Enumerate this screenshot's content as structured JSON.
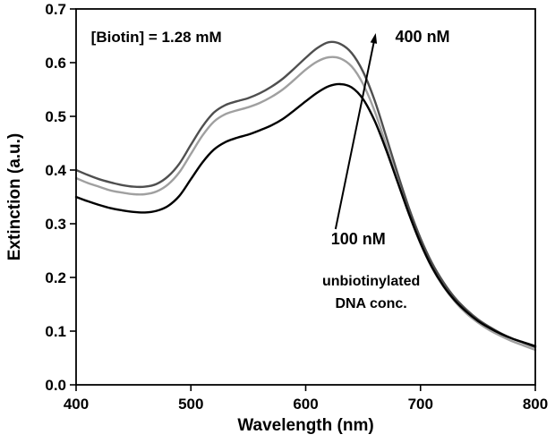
{
  "chart_data": {
    "type": "line",
    "title": "",
    "xlabel": "Wavelength (nm)",
    "ylabel": "Extinction (a.u.)",
    "xlim": [
      400,
      800
    ],
    "ylim": [
      0.0,
      0.7
    ],
    "xticks": [
      400,
      500,
      600,
      700,
      800
    ],
    "yticks": [
      0.0,
      0.1,
      0.2,
      0.3,
      0.4,
      0.5,
      0.6,
      0.7
    ],
    "grid": false,
    "legend": "none",
    "x_start": 400,
    "x_step": 10,
    "axis_color": "#000000",
    "series": [
      {
        "name": "intermediate-unbiotinylated-dna",
        "color": "#a0a0a0",
        "width": 2.4,
        "values": [
          0.385,
          0.376,
          0.369,
          0.362,
          0.358,
          0.355,
          0.355,
          0.36,
          0.373,
          0.396,
          0.43,
          0.464,
          0.49,
          0.504,
          0.511,
          0.517,
          0.525,
          0.536,
          0.55,
          0.568,
          0.587,
          0.602,
          0.61,
          0.608,
          0.593,
          0.56,
          0.51,
          0.447,
          0.381,
          0.318,
          0.263,
          0.218,
          0.183,
          0.155,
          0.133,
          0.116,
          0.102,
          0.091,
          0.081,
          0.073,
          0.065
        ]
      },
      {
        "name": "400-nM-unbiotinylated-dna",
        "color": "#4f4f4f",
        "width": 2.4,
        "values": [
          0.4,
          0.391,
          0.383,
          0.377,
          0.372,
          0.369,
          0.369,
          0.374,
          0.388,
          0.412,
          0.447,
          0.481,
          0.507,
          0.521,
          0.528,
          0.534,
          0.543,
          0.555,
          0.57,
          0.589,
          0.609,
          0.627,
          0.638,
          0.635,
          0.618,
          0.583,
          0.53,
          0.463,
          0.394,
          0.329,
          0.273,
          0.227,
          0.191,
          0.162,
          0.14,
          0.122,
          0.108,
          0.096,
          0.086,
          0.078,
          0.07
        ]
      },
      {
        "name": "100-nM-unbiotinylated-dna",
        "color": "#000000",
        "width": 2.4,
        "values": [
          0.35,
          0.342,
          0.335,
          0.329,
          0.325,
          0.322,
          0.321,
          0.324,
          0.333,
          0.352,
          0.383,
          0.414,
          0.438,
          0.452,
          0.46,
          0.466,
          0.474,
          0.483,
          0.495,
          0.511,
          0.528,
          0.544,
          0.556,
          0.56,
          0.554,
          0.532,
          0.492,
          0.438,
          0.378,
          0.318,
          0.264,
          0.219,
          0.184,
          0.157,
          0.136,
          0.119,
          0.106,
          0.095,
          0.086,
          0.079,
          0.072
        ]
      }
    ],
    "annotations": [
      {
        "id": "biotin-label",
        "text": "[Biotin] = 1.28 mM",
        "x": 413,
        "y": 0.638,
        "anchor": "start",
        "size": 17
      },
      {
        "id": "conc-high-label",
        "text": "400 nM",
        "x": 678,
        "y": 0.638,
        "anchor": "start",
        "size": 18
      },
      {
        "id": "conc-low-label",
        "text": "100 nM",
        "x": 622,
        "y": 0.262,
        "anchor": "start",
        "size": 18
      },
      {
        "id": "desc-line1",
        "text": "unbiotinylated",
        "x": 657,
        "y": 0.185,
        "anchor": "middle",
        "size": 16
      },
      {
        "id": "desc-line2",
        "text": "DNA conc.",
        "x": 657,
        "y": 0.143,
        "anchor": "middle",
        "size": 16
      }
    ],
    "arrow": {
      "x1": 626,
      "y1": 0.29,
      "x2": 661,
      "y2": 0.655,
      "color": "#000000",
      "width": 2
    }
  }
}
